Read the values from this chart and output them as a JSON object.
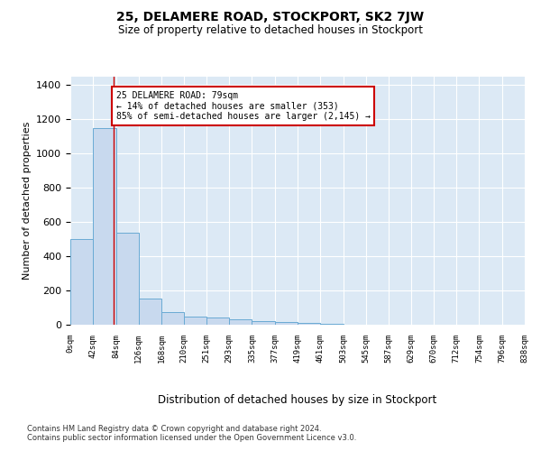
{
  "title": "25, DELAMERE ROAD, STOCKPORT, SK2 7JW",
  "subtitle": "Size of property relative to detached houses in Stockport",
  "xlabel": "Distribution of detached houses by size in Stockport",
  "ylabel": "Number of detached properties",
  "bar_color": "#c8d9ee",
  "bar_edge_color": "#6aaad4",
  "background_color": "#dce9f5",
  "bin_edges": [
    0,
    42,
    84,
    126,
    168,
    210,
    251,
    293,
    335,
    377,
    419,
    461,
    503,
    545,
    587,
    629,
    670,
    712,
    754,
    796,
    838
  ],
  "bar_heights": [
    500,
    1150,
    540,
    155,
    75,
    50,
    40,
    30,
    20,
    15,
    8,
    5,
    0,
    0,
    0,
    0,
    0,
    0,
    0,
    0
  ],
  "ylim": [
    0,
    1450
  ],
  "yticks": [
    0,
    200,
    400,
    600,
    800,
    1000,
    1200,
    1400
  ],
  "property_line_x": 79,
  "annotation_text": "25 DELAMERE ROAD: 79sqm\n← 14% of detached houses are smaller (353)\n85% of semi-detached houses are larger (2,145) →",
  "annotation_box_color": "#ffffff",
  "annotation_box_edge_color": "#cc0000",
  "footnote": "Contains HM Land Registry data © Crown copyright and database right 2024.\nContains public sector information licensed under the Open Government Licence v3.0.",
  "property_line_color": "#cc0000",
  "grid_color": "#ffffff"
}
